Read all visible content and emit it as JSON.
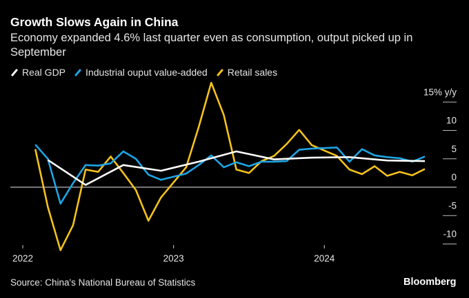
{
  "chart_data": {
    "type": "line",
    "title": "Growth Slows Again in China",
    "subtitle": "Economy expanded 4.6% last quarter even as consumption, output picked up in September",
    "ylabel_unit": "15% y/y",
    "ylim": [
      -10,
      15
    ],
    "y_ticks": [
      "15% y/y",
      "10",
      "5",
      "0",
      "-5",
      "-10"
    ],
    "y_tick_values": [
      15,
      10,
      5,
      0,
      -5,
      -10
    ],
    "x_ticks": [
      "2022",
      "2023",
      "2024"
    ],
    "x_tick_values": [
      "2022-01",
      "2023-01",
      "2024-01"
    ],
    "legend_placement": "top-left",
    "grid": false,
    "series": [
      {
        "name": "Real GDP",
        "color": "#ffffff",
        "x": [
          "2022-03",
          "2022-06",
          "2022-09",
          "2022-12",
          "2023-03",
          "2023-06",
          "2023-09",
          "2023-12",
          "2024-03",
          "2024-06",
          "2024-09"
        ],
        "values": [
          4.8,
          0.4,
          3.9,
          2.9,
          4.5,
          6.3,
          4.9,
          5.2,
          5.3,
          4.7,
          4.6
        ]
      },
      {
        "name": "Industrial ouput value-added",
        "color": "#1ea5e6",
        "x": [
          "2022-02",
          "2022-03",
          "2022-04",
          "2022-05",
          "2022-06",
          "2022-07",
          "2022-08",
          "2022-09",
          "2022-10",
          "2022-11",
          "2022-12",
          "2023-02",
          "2023-03",
          "2023-04",
          "2023-05",
          "2023-06",
          "2023-07",
          "2023-08",
          "2023-09",
          "2023-10",
          "2023-11",
          "2023-12",
          "2024-02",
          "2024-03",
          "2024-04",
          "2024-05",
          "2024-06",
          "2024-07",
          "2024-08",
          "2024-09"
        ],
        "values": [
          7.5,
          5.0,
          -2.9,
          0.7,
          3.9,
          3.8,
          4.2,
          6.3,
          5.0,
          2.2,
          1.3,
          2.4,
          3.9,
          5.6,
          3.5,
          4.4,
          3.7,
          4.5,
          4.5,
          4.6,
          6.6,
          6.8,
          7.0,
          4.5,
          6.7,
          5.6,
          5.3,
          5.1,
          4.5,
          5.4
        ]
      },
      {
        "name": "Retail sales",
        "color": "#f5c21b",
        "x": [
          "2022-02",
          "2022-03",
          "2022-04",
          "2022-05",
          "2022-06",
          "2022-07",
          "2022-08",
          "2022-09",
          "2022-10",
          "2022-11",
          "2022-12",
          "2023-02",
          "2023-03",
          "2023-04",
          "2023-05",
          "2023-06",
          "2023-07",
          "2023-08",
          "2023-09",
          "2023-10",
          "2023-11",
          "2023-12",
          "2024-02",
          "2024-03",
          "2024-04",
          "2024-05",
          "2024-06",
          "2024-07",
          "2024-08",
          "2024-09"
        ],
        "values": [
          6.7,
          -3.5,
          -11.1,
          -6.7,
          3.1,
          2.7,
          5.4,
          2.5,
          -0.5,
          -5.9,
          -1.8,
          3.5,
          10.6,
          18.4,
          12.7,
          3.1,
          2.5,
          4.6,
          5.5,
          7.6,
          10.1,
          7.4,
          5.5,
          3.1,
          2.3,
          3.7,
          2.0,
          2.7,
          2.1,
          3.2
        ]
      }
    ]
  },
  "source": "Source: China's National Bureau of Statistics",
  "logo": "Bloomberg"
}
